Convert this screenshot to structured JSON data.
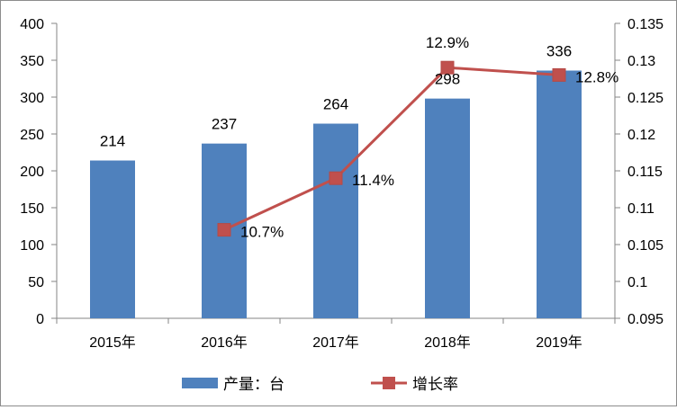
{
  "chart_data": {
    "type": "bar+line",
    "categories": [
      "2015年",
      "2016年",
      "2017年",
      "2018年",
      "2019年"
    ],
    "series": [
      {
        "name": "产量：台",
        "type": "bar",
        "axis": "left",
        "values": [
          214,
          237,
          264,
          298,
          336
        ],
        "labels": [
          "214",
          "237",
          "264",
          "298",
          "336"
        ],
        "color": "#4f81bd"
      },
      {
        "name": "增长率",
        "type": "line",
        "axis": "right",
        "values": [
          null,
          0.107,
          0.114,
          0.129,
          0.128
        ],
        "labels": [
          null,
          "10.7%",
          "11.4%",
          "12.9%",
          "12.8%"
        ],
        "color": "#c0504d"
      }
    ],
    "y_left": {
      "min": 0,
      "max": 400,
      "step": 50,
      "ticks": [
        "0",
        "50",
        "100",
        "150",
        "200",
        "250",
        "300",
        "350",
        "400"
      ]
    },
    "y_right": {
      "min": 0.095,
      "max": 0.135,
      "step": 0.005,
      "ticks": [
        "0.095",
        "0.1",
        "0.105",
        "0.11",
        "0.115",
        "0.12",
        "0.125",
        "0.13",
        "0.135"
      ]
    },
    "grid": false,
    "legend_position": "bottom"
  }
}
